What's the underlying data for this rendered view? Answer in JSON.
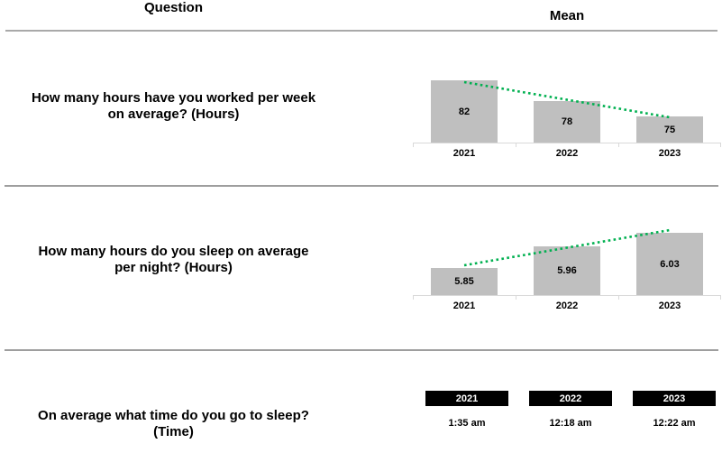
{
  "header": {
    "question_label": "Question",
    "mean_label": "Mean"
  },
  "colors": {
    "bar_fill": "#bfbfbf",
    "trendline": "#00b050",
    "axis": "#d9d9d9",
    "separator": "#9e9e9e",
    "header_separator": "#a9a9a9",
    "year_box_bg": "#000000",
    "year_box_text": "#ffffff",
    "text": "#000000"
  },
  "rows": [
    {
      "question": "How many hours have you worked per week on average? (Hours)",
      "question_lines": [
        "How many hours have you worked per week",
        "on average? (Hours)"
      ]
    },
    {
      "question": "How many hours do you sleep on average per night? (Hours)",
      "question_lines": [
        "How many hours do you sleep on average",
        "per night? (Hours)"
      ]
    },
    {
      "question": "On average what time do you go to sleep? (Time)",
      "question_lines": [
        "On average what time do you go to sleep?",
        "(Time)"
      ]
    }
  ],
  "chart_data": [
    {
      "type": "bar",
      "title": "How many hours have you worked per week on average? (Hours)",
      "categories": [
        "2021",
        "2022",
        "2023"
      ],
      "values": [
        82,
        78,
        75
      ],
      "value_labels": [
        "82",
        "78",
        "75"
      ],
      "ylim": [
        70,
        84
      ],
      "grid": false,
      "legend": false,
      "trendline": true,
      "trend_direction": "down"
    },
    {
      "type": "bar",
      "title": "How many hours do you sleep on average per night? (Hours)",
      "categories": [
        "2021",
        "2022",
        "2023"
      ],
      "values": [
        5.85,
        5.96,
        6.03
      ],
      "value_labels": [
        "5.85",
        "5.96",
        "6.03"
      ],
      "ylim": [
        5.71,
        6.08
      ],
      "grid": false,
      "legend": false,
      "trendline": true,
      "trend_direction": "up"
    },
    {
      "type": "table",
      "title": "On average what time do you go to sleep? (Time)",
      "categories": [
        "2021",
        "2022",
        "2023"
      ],
      "values": [
        "1:35 am",
        "12:18 am",
        "12:22 am"
      ]
    }
  ]
}
